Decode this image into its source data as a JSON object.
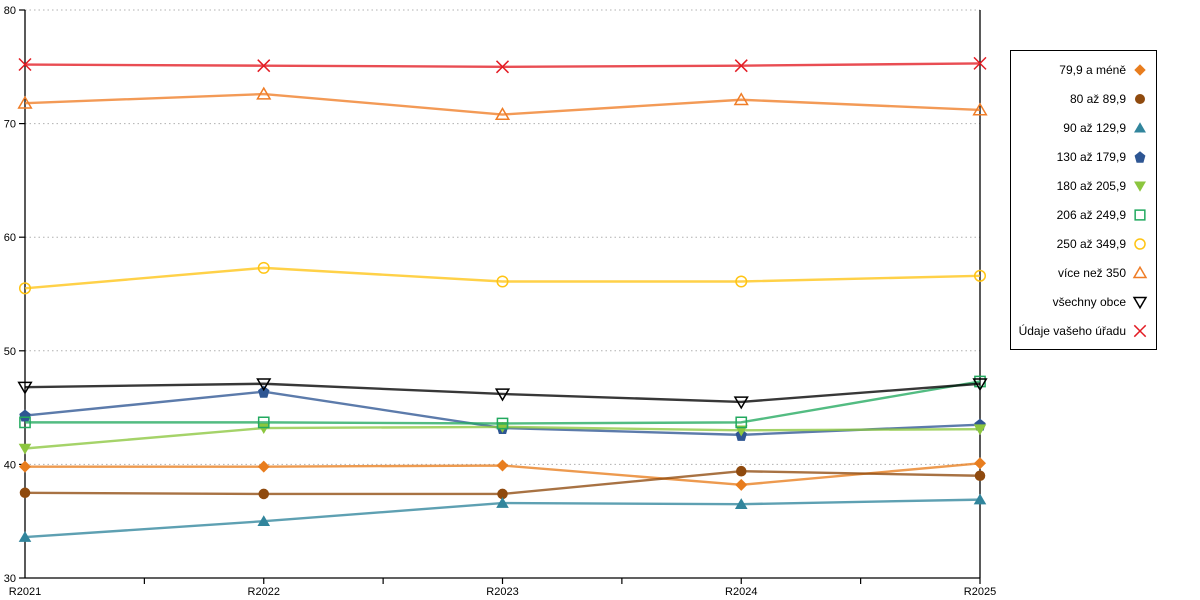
{
  "chart_data": {
    "type": "line",
    "title": "",
    "xlabel": "",
    "ylabel": "",
    "x_categories": [
      "R2021",
      "R2022",
      "R2023",
      "R2024",
      "R2025"
    ],
    "ylim": [
      30,
      80
    ],
    "y_ticks": [
      30,
      40,
      50,
      60,
      70,
      80
    ],
    "grid": "horizontal dotted lines at each y tick",
    "legend_position": "outside right, boxed",
    "colors": {
      "grid": "#b0b0b0",
      "axis": "#000000"
    },
    "series": [
      {
        "name": "79,9 a méně",
        "marker": "diamond",
        "fill": "solid",
        "color": "#E87D1E",
        "values": [
          39.8,
          39.8,
          39.9,
          38.2,
          40.1
        ]
      },
      {
        "name": "80 až 89,9",
        "marker": "circle",
        "fill": "solid",
        "color": "#8F4A0E",
        "values": [
          37.5,
          37.4,
          37.4,
          39.4,
          39.0
        ]
      },
      {
        "name": "90 až 129,9",
        "marker": "triangle-up",
        "fill": "solid",
        "color": "#31859C",
        "values": [
          33.6,
          35.0,
          36.6,
          36.5,
          36.9
        ]
      },
      {
        "name": "130 až 179,9",
        "marker": "pentagon",
        "fill": "solid",
        "color": "#2E5693",
        "values": [
          44.3,
          46.4,
          43.2,
          42.6,
          43.5
        ]
      },
      {
        "name": "180 až 205,9",
        "marker": "triangle-down",
        "fill": "solid",
        "color": "#8CC63F",
        "values": [
          41.4,
          43.2,
          43.3,
          43.0,
          43.1
        ]
      },
      {
        "name": "206 až 249,9",
        "marker": "square",
        "fill": "open",
        "color": "#22A95F",
        "values": [
          43.7,
          43.7,
          43.6,
          43.7,
          47.3
        ]
      },
      {
        "name": "250 až 349,9",
        "marker": "circle",
        "fill": "open",
        "color": "#FFC414",
        "values": [
          55.5,
          57.3,
          56.1,
          56.1,
          56.6
        ]
      },
      {
        "name": "více než 350",
        "marker": "triangle-up",
        "fill": "open",
        "color": "#EF7D27",
        "values": [
          71.8,
          72.6,
          70.8,
          72.1,
          71.2
        ]
      },
      {
        "name": "všechny obce",
        "marker": "triangle-down",
        "fill": "open",
        "color": "#000000",
        "values": [
          46.8,
          47.1,
          46.2,
          45.5,
          47.1
        ]
      },
      {
        "name": "Údaje vašeho úřadu",
        "marker": "x",
        "fill": "open",
        "color": "#E31B23",
        "values": [
          75.2,
          75.1,
          75.0,
          75.1,
          75.3
        ]
      }
    ]
  }
}
